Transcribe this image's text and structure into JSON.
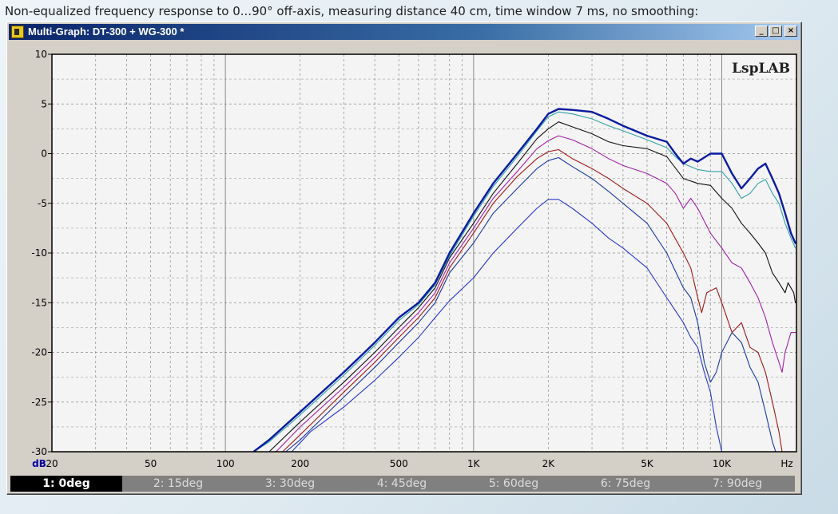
{
  "caption": "Non-equalized frequency response to 0...90° off-axis, measuring distance 40 cm, time window 7 ms, no smoothing:",
  "window": {
    "title": "Multi-Graph: DT-300 + WG-300 *",
    "buttons": {
      "minimize": "_",
      "maximize": "□",
      "close": "×"
    }
  },
  "colors": {
    "background": "#f4f4f4",
    "grid": "#808080",
    "axis_label": "#0000a0",
    "series": [
      "#0a1aa0",
      "#30a0a8",
      "#101010",
      "#a020a8",
      "#a01818",
      "#1838a0",
      "#2838c8"
    ]
  },
  "chart_data": {
    "type": "line",
    "x_scale": "log",
    "xlim": [
      20,
      20000
    ],
    "ylim": [
      -30,
      10
    ],
    "grid": true,
    "ylabel": "dB",
    "xlabel": "Hz",
    "watermark": "LspLAB",
    "y_ticks": [
      {
        "value": 10,
        "label": "10"
      },
      {
        "value": 5,
        "label": "5"
      },
      {
        "value": 0,
        "label": "0"
      },
      {
        "value": -5,
        "label": "-5"
      },
      {
        "value": -10,
        "label": "-10"
      },
      {
        "value": -15,
        "label": "-15"
      },
      {
        "value": -20,
        "label": "-20"
      },
      {
        "value": -25,
        "label": "-25"
      },
      {
        "value": -30,
        "label": "-30"
      }
    ],
    "x_ticks": [
      {
        "value": 20,
        "label": "20"
      },
      {
        "value": 50,
        "label": "50"
      },
      {
        "value": 100,
        "label": "100"
      },
      {
        "value": 200,
        "label": "200"
      },
      {
        "value": 500,
        "label": "500"
      },
      {
        "value": 1000,
        "label": "1K"
      },
      {
        "value": 2000,
        "label": "2K"
      },
      {
        "value": 5000,
        "label": "5K"
      },
      {
        "value": 10000,
        "label": "10K"
      }
    ],
    "series": [
      {
        "name": "1: 0deg",
        "width": 2.4,
        "points": [
          [
            130,
            -30
          ],
          [
            150,
            -28.8
          ],
          [
            200,
            -26
          ],
          [
            300,
            -22
          ],
          [
            400,
            -19
          ],
          [
            500,
            -16.5
          ],
          [
            600,
            -15
          ],
          [
            700,
            -13
          ],
          [
            800,
            -10
          ],
          [
            1000,
            -6
          ],
          [
            1200,
            -3
          ],
          [
            1500,
            0
          ],
          [
            1800,
            2.5
          ],
          [
            2000,
            4
          ],
          [
            2200,
            4.5
          ],
          [
            2500,
            4.4
          ],
          [
            3000,
            4.2
          ],
          [
            3500,
            3.5
          ],
          [
            4000,
            2.8
          ],
          [
            5000,
            1.8
          ],
          [
            6000,
            1.2
          ],
          [
            6500,
            0
          ],
          [
            7000,
            -1
          ],
          [
            7500,
            -0.5
          ],
          [
            8000,
            -0.8
          ],
          [
            9000,
            0
          ],
          [
            10000,
            0
          ],
          [
            11000,
            -2
          ],
          [
            12000,
            -3.5
          ],
          [
            13000,
            -2.5
          ],
          [
            14000,
            -1.5
          ],
          [
            15000,
            -1
          ],
          [
            16000,
            -2.5
          ],
          [
            17000,
            -4
          ],
          [
            18000,
            -6
          ],
          [
            19000,
            -8
          ],
          [
            19800,
            -9
          ]
        ]
      },
      {
        "name": "2: 15deg",
        "width": 1.1,
        "points": [
          [
            130,
            -30
          ],
          [
            150,
            -29
          ],
          [
            200,
            -26.3
          ],
          [
            300,
            -22.3
          ],
          [
            400,
            -19.3
          ],
          [
            500,
            -16.8
          ],
          [
            600,
            -15.2
          ],
          [
            700,
            -13.2
          ],
          [
            800,
            -10.3
          ],
          [
            1000,
            -6.3
          ],
          [
            1200,
            -3.3
          ],
          [
            1500,
            -0.3
          ],
          [
            1800,
            2.3
          ],
          [
            2000,
            3.7
          ],
          [
            2200,
            4.2
          ],
          [
            2500,
            4.0
          ],
          [
            3000,
            3.5
          ],
          [
            3500,
            2.8
          ],
          [
            4000,
            2.3
          ],
          [
            5000,
            1.4
          ],
          [
            6000,
            0.6
          ],
          [
            6500,
            -0.3
          ],
          [
            7000,
            -1
          ],
          [
            8000,
            -1.6
          ],
          [
            9000,
            -1.8
          ],
          [
            10000,
            -1.8
          ],
          [
            11000,
            -3
          ],
          [
            12000,
            -4.5
          ],
          [
            13000,
            -4
          ],
          [
            14000,
            -3
          ],
          [
            15000,
            -2.6
          ],
          [
            16000,
            -4
          ],
          [
            17000,
            -5
          ],
          [
            18000,
            -7
          ],
          [
            19000,
            -8.5
          ],
          [
            19800,
            -9.5
          ]
        ]
      },
      {
        "name": "3: 30deg",
        "width": 1.1,
        "points": [
          [
            150,
            -30
          ],
          [
            200,
            -27
          ],
          [
            300,
            -23
          ],
          [
            400,
            -20
          ],
          [
            500,
            -17.5
          ],
          [
            600,
            -15.5
          ],
          [
            700,
            -13.5
          ],
          [
            800,
            -10.5
          ],
          [
            1000,
            -7
          ],
          [
            1200,
            -4
          ],
          [
            1500,
            -1
          ],
          [
            1800,
            1.5
          ],
          [
            2000,
            2.5
          ],
          [
            2200,
            3.2
          ],
          [
            2500,
            2.7
          ],
          [
            3000,
            2
          ],
          [
            3500,
            1.2
          ],
          [
            4000,
            0.8
          ],
          [
            5000,
            0.5
          ],
          [
            6000,
            -0.3
          ],
          [
            7000,
            -2.5
          ],
          [
            8000,
            -3
          ],
          [
            9000,
            -3.2
          ],
          [
            10000,
            -4.5
          ],
          [
            11000,
            -5.5
          ],
          [
            12000,
            -7
          ],
          [
            13000,
            -8
          ],
          [
            14000,
            -9
          ],
          [
            15000,
            -10
          ],
          [
            16000,
            -12
          ],
          [
            17000,
            -13
          ],
          [
            18000,
            -14
          ],
          [
            18500,
            -13
          ],
          [
            19500,
            -14
          ],
          [
            19800,
            -15
          ]
        ]
      },
      {
        "name": "4: 45deg",
        "width": 1.1,
        "points": [
          [
            160,
            -30
          ],
          [
            200,
            -27.5
          ],
          [
            300,
            -23.5
          ],
          [
            400,
            -20.5
          ],
          [
            500,
            -18
          ],
          [
            600,
            -16
          ],
          [
            700,
            -14
          ],
          [
            800,
            -11
          ],
          [
            1000,
            -7.5
          ],
          [
            1200,
            -4.5
          ],
          [
            1500,
            -1.8
          ],
          [
            1800,
            0.5
          ],
          [
            2000,
            1.3
          ],
          [
            2200,
            1.8
          ],
          [
            2500,
            1.4
          ],
          [
            3000,
            0.5
          ],
          [
            3500,
            -0.5
          ],
          [
            4000,
            -1.2
          ],
          [
            5000,
            -2
          ],
          [
            6000,
            -3
          ],
          [
            6500,
            -4
          ],
          [
            7000,
            -5.5
          ],
          [
            7500,
            -4.5
          ],
          [
            8000,
            -5.5
          ],
          [
            9000,
            -8
          ],
          [
            10000,
            -9.5
          ],
          [
            11000,
            -11
          ],
          [
            12000,
            -11.5
          ],
          [
            13000,
            -13
          ],
          [
            14000,
            -14.5
          ],
          [
            15000,
            -16.5
          ],
          [
            16000,
            -19
          ],
          [
            17000,
            -21
          ],
          [
            17500,
            -22
          ],
          [
            18000,
            -20
          ],
          [
            19000,
            -18
          ],
          [
            19800,
            -18
          ]
        ]
      },
      {
        "name": "5: 60deg",
        "width": 1.1,
        "points": [
          [
            170,
            -30
          ],
          [
            200,
            -28.3
          ],
          [
            300,
            -24
          ],
          [
            400,
            -21
          ],
          [
            500,
            -18.5
          ],
          [
            600,
            -16.5
          ],
          [
            700,
            -14.5
          ],
          [
            800,
            -11.5
          ],
          [
            1000,
            -8
          ],
          [
            1200,
            -5
          ],
          [
            1500,
            -2.3
          ],
          [
            1800,
            -0.5
          ],
          [
            2000,
            0.2
          ],
          [
            2200,
            0.4
          ],
          [
            2500,
            -0.5
          ],
          [
            3000,
            -1.5
          ],
          [
            3500,
            -2.5
          ],
          [
            4000,
            -3.5
          ],
          [
            5000,
            -5
          ],
          [
            6000,
            -7
          ],
          [
            7000,
            -10
          ],
          [
            7500,
            -11.5
          ],
          [
            8000,
            -14.5
          ],
          [
            8300,
            -16
          ],
          [
            8700,
            -14
          ],
          [
            9500,
            -13.5
          ],
          [
            10000,
            -15
          ],
          [
            11000,
            -18
          ],
          [
            12000,
            -17
          ],
          [
            13000,
            -19.5
          ],
          [
            14000,
            -20
          ],
          [
            15000,
            -22
          ],
          [
            16000,
            -25
          ],
          [
            17000,
            -28
          ],
          [
            17500,
            -30
          ]
        ]
      },
      {
        "name": "6: 75deg",
        "width": 1.1,
        "points": [
          [
            175,
            -30
          ],
          [
            200,
            -28.8
          ],
          [
            300,
            -24.5
          ],
          [
            400,
            -21.5
          ],
          [
            500,
            -19
          ],
          [
            600,
            -17
          ],
          [
            700,
            -15
          ],
          [
            800,
            -12
          ],
          [
            1000,
            -9
          ],
          [
            1200,
            -6
          ],
          [
            1500,
            -3.5
          ],
          [
            1800,
            -1.5
          ],
          [
            2000,
            -0.7
          ],
          [
            2200,
            -0.4
          ],
          [
            2500,
            -1.3
          ],
          [
            3000,
            -2.5
          ],
          [
            3500,
            -3.8
          ],
          [
            4000,
            -5
          ],
          [
            5000,
            -7
          ],
          [
            6000,
            -10
          ],
          [
            7000,
            -13.5
          ],
          [
            7500,
            -14.5
          ],
          [
            8000,
            -17
          ],
          [
            8500,
            -21
          ],
          [
            9000,
            -23
          ],
          [
            9500,
            -22
          ],
          [
            10000,
            -20
          ],
          [
            11000,
            -18
          ],
          [
            12000,
            -19
          ],
          [
            13000,
            -21.5
          ],
          [
            14000,
            -23
          ],
          [
            15000,
            -26
          ],
          [
            16000,
            -29
          ],
          [
            16500,
            -30
          ]
        ]
      },
      {
        "name": "7: 90deg",
        "width": 1.1,
        "points": [
          [
            185,
            -30
          ],
          [
            220,
            -28
          ],
          [
            300,
            -25.5
          ],
          [
            400,
            -22.8
          ],
          [
            500,
            -20.5
          ],
          [
            600,
            -18.5
          ],
          [
            700,
            -16.5
          ],
          [
            800,
            -14.8
          ],
          [
            1000,
            -12.5
          ],
          [
            1200,
            -10
          ],
          [
            1500,
            -7.5
          ],
          [
            1800,
            -5.5
          ],
          [
            2000,
            -4.6
          ],
          [
            2200,
            -4.6
          ],
          [
            2500,
            -5.5
          ],
          [
            3000,
            -7
          ],
          [
            3500,
            -8.5
          ],
          [
            4000,
            -9.5
          ],
          [
            5000,
            -11.5
          ],
          [
            6000,
            -14.5
          ],
          [
            7000,
            -17
          ],
          [
            7500,
            -18.5
          ],
          [
            8000,
            -19.5
          ],
          [
            8500,
            -22
          ],
          [
            9000,
            -24
          ],
          [
            9500,
            -27.5
          ],
          [
            10000,
            -30
          ]
        ]
      }
    ]
  }
}
